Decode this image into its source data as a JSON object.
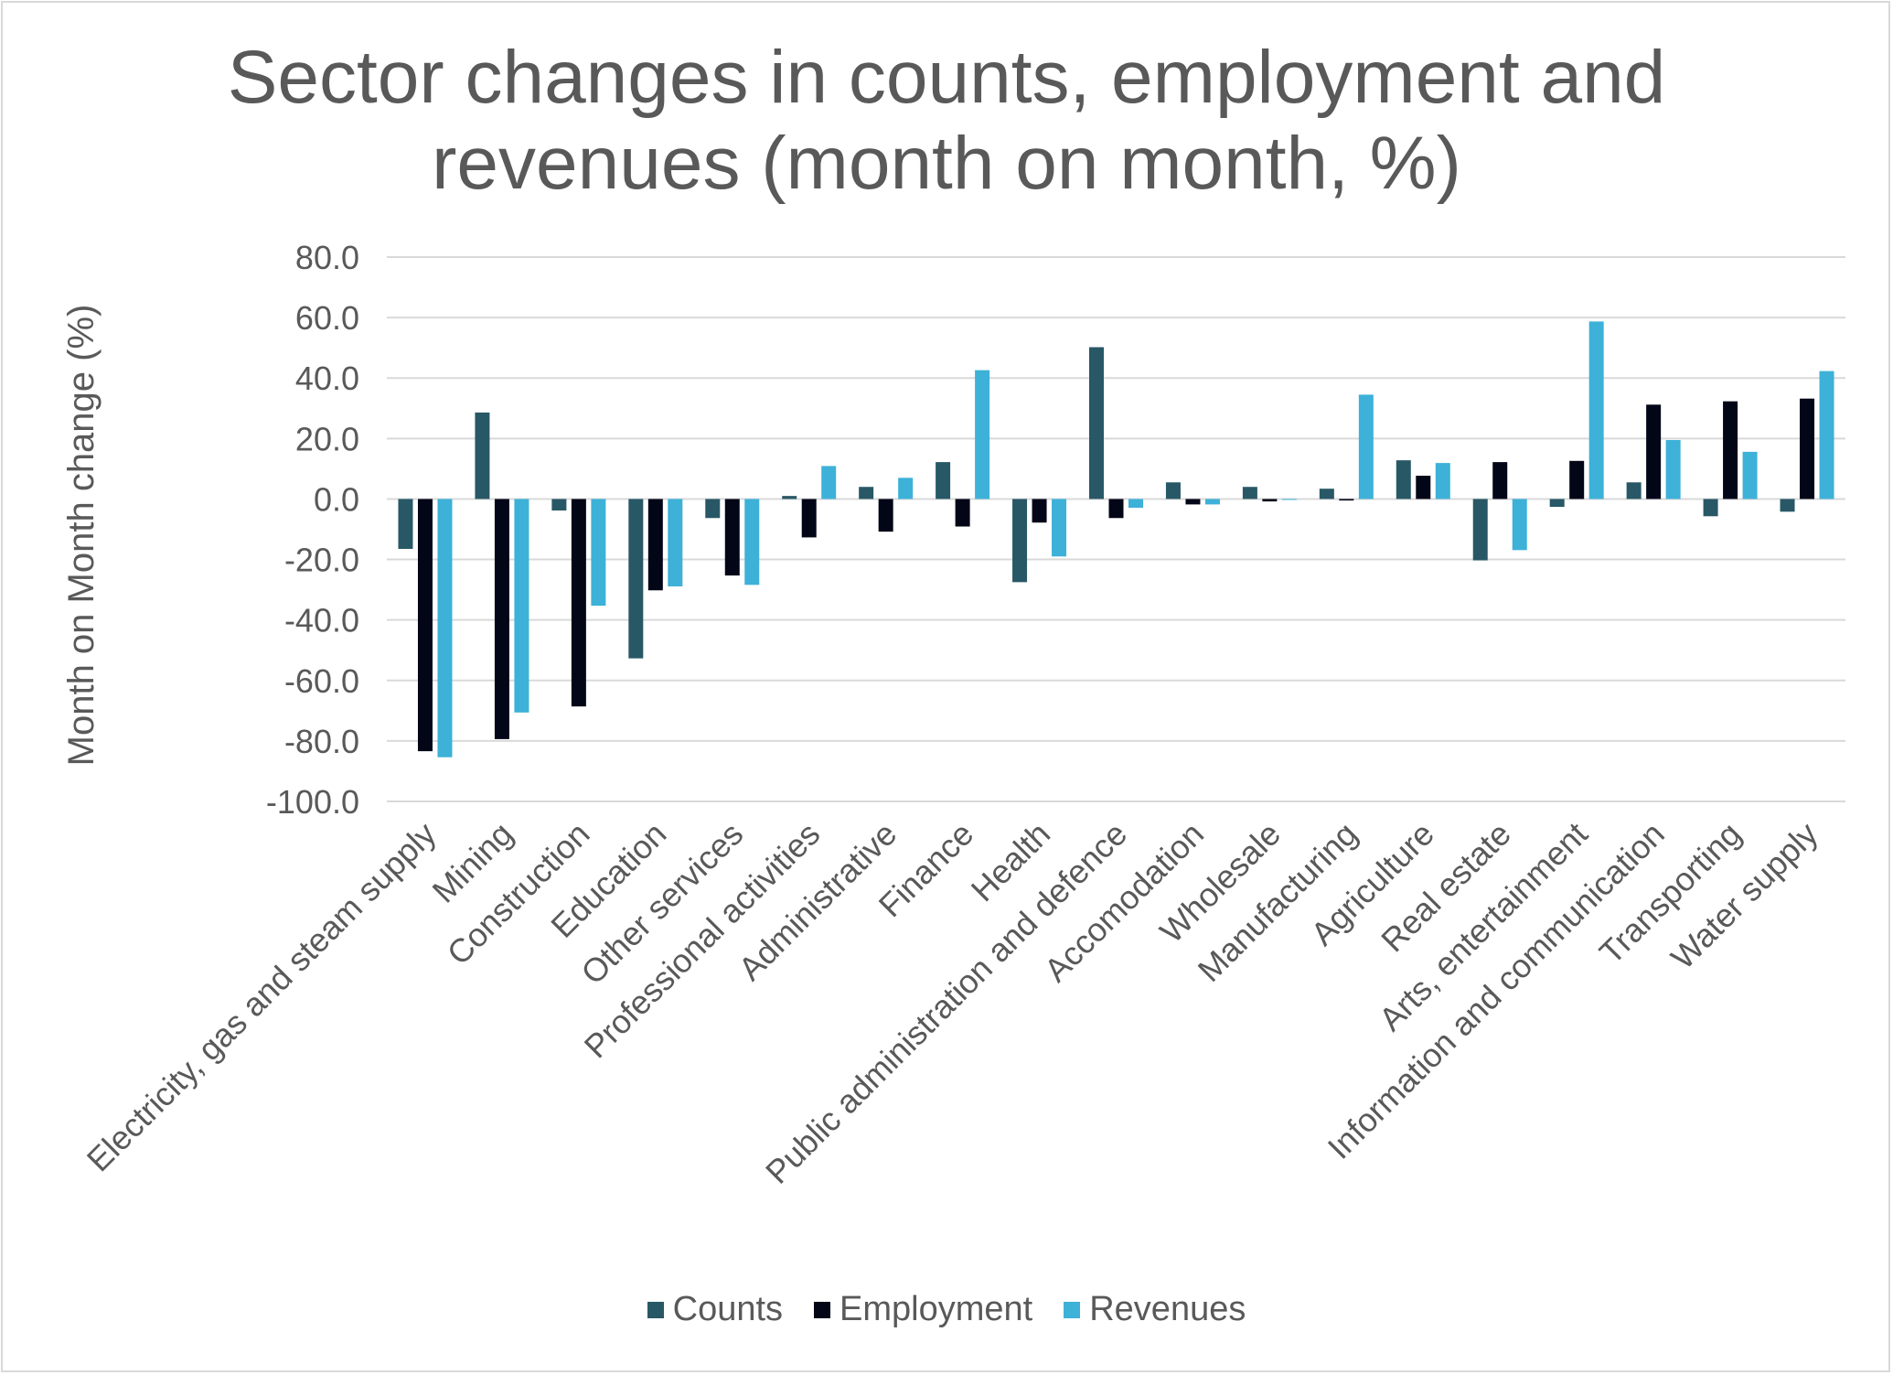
{
  "chart_data": {
    "type": "bar",
    "title": "Sector changes in counts, employment and revenues (month on month, %)",
    "title_lines": [
      "Sector changes in counts, employment and",
      "revenues (month on month, %)"
    ],
    "xlabel": "",
    "ylabel": "Month on Month change (%)",
    "ylim": [
      -100,
      80
    ],
    "yticks": [
      80,
      60,
      40,
      20,
      0,
      -20,
      -40,
      -60,
      -80,
      -100
    ],
    "ytick_labels": [
      "80.0",
      "60.0",
      "40.0",
      "20.0",
      "0.0",
      "-20.0",
      "-40.0",
      "-60.0",
      "-80.0",
      "-100.0"
    ],
    "grid": true,
    "legend_position": "bottom",
    "categories": [
      "Electricity, gas and steam supply",
      "Mining",
      "Construction",
      "Education",
      "Other services",
      "Professional activities",
      "Administrative",
      "Finance",
      "Health",
      "Public administration and defence",
      "Accomodation",
      "Wholesale",
      "Manufacturing",
      "Agriculture",
      "Real estate",
      "Arts, entertainment",
      "Information and communication",
      "Transporting",
      "Water supply"
    ],
    "series": [
      {
        "name": "Counts",
        "color": "#285866",
        "values": [
          -16.5,
          28.6,
          -3.8,
          -52.7,
          -6.3,
          1.0,
          4.0,
          12.2,
          -27.5,
          50.2,
          5.5,
          4.0,
          3.4,
          12.8,
          -20.3,
          -2.6,
          5.5,
          -5.7,
          -4.2
        ]
      },
      {
        "name": "Employment",
        "color": "#020617",
        "values": [
          -83.4,
          -79.4,
          -68.6,
          -30.2,
          -25.3,
          -12.7,
          -10.8,
          -9.1,
          -7.8,
          -6.3,
          -1.8,
          -0.8,
          -0.5,
          7.7,
          12.2,
          12.6,
          31.2,
          32.3,
          33.2
        ]
      },
      {
        "name": "Revenues",
        "color": "#3db1d8",
        "values": [
          -85.4,
          -70.6,
          -35.3,
          -28.9,
          -28.4,
          10.9,
          7.0,
          42.6,
          -19.0,
          -2.9,
          -1.8,
          -0.2,
          34.5,
          11.9,
          -16.9,
          58.7,
          19.5,
          15.6,
          42.3
        ]
      }
    ]
  }
}
